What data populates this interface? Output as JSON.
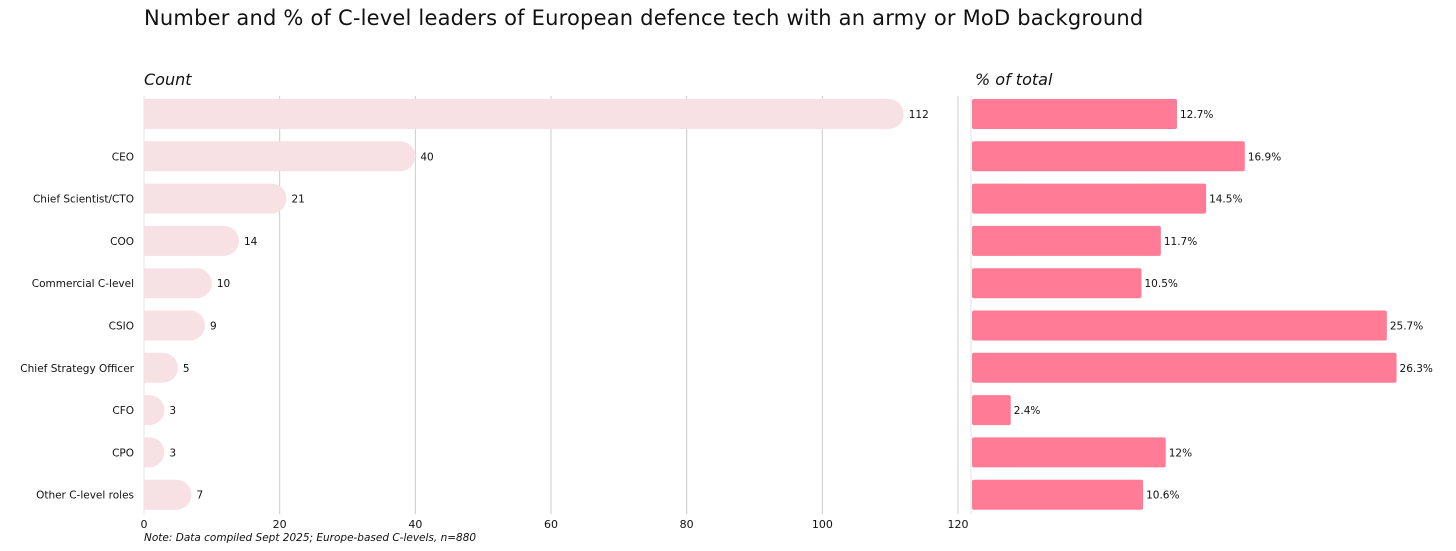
{
  "title": "Number and % of C-level leaders of European defence tech with an army or MoD background",
  "note": "Note: Data compiled Sept 2025; Europe-based C-levels, n=880",
  "colors": {
    "count_bar": "#f7e1e5",
    "pct_bar": "#ff7b96",
    "grid": "#cccccc",
    "text": "#111111"
  },
  "chart_data": [
    {
      "type": "bar",
      "orientation": "horizontal",
      "title": "Count",
      "categories": [
        "",
        "CEO",
        "Chief Scientist/CTO",
        "COO",
        "Commercial C-level",
        "CSIO",
        "Chief Strategy Officer",
        "CFO",
        "CPO",
        "Other C-level roles"
      ],
      "values": [
        112,
        40,
        21,
        14,
        10,
        9,
        5,
        3,
        3,
        7
      ],
      "value_labels": [
        "112",
        "40",
        "21",
        "14",
        "10",
        "9",
        "5",
        "3",
        "3",
        "7"
      ],
      "xlim": [
        0,
        120
      ],
      "xticks": [
        "0",
        "20",
        "40",
        "60",
        "80",
        "100",
        "120"
      ],
      "grid": true
    },
    {
      "type": "bar",
      "orientation": "horizontal",
      "title": "% of total",
      "categories": [
        "",
        "CEO",
        "Chief Scientist/CTO",
        "COO",
        "Commercial C-level",
        "CSIO",
        "Chief Strategy Officer",
        "CFO",
        "CPO",
        "Other C-level roles"
      ],
      "values": [
        12.7,
        16.9,
        14.5,
        11.7,
        10.5,
        25.7,
        26.3,
        2.4,
        12,
        10.6
      ],
      "value_labels": [
        "12.7%",
        "16.9%",
        "14.5%",
        "11.7%",
        "10.5%",
        "25.7%",
        "26.3%",
        "2.4%",
        "12%",
        "10.6%"
      ],
      "xlim": [
        0,
        28
      ],
      "grid": false
    }
  ]
}
